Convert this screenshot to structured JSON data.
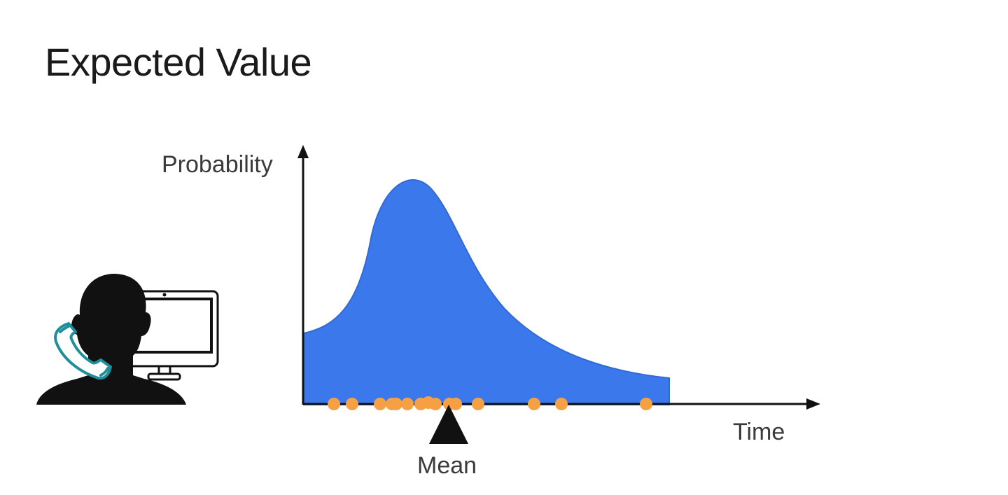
{
  "slide": {
    "title": "Expected Value"
  },
  "chart_data": {
    "type": "area",
    "ylabel": "Probability",
    "xlabel": "Time",
    "annotations": [
      "Mean"
    ],
    "grid": false,
    "distribution": "right-skewed density curve",
    "samples_count": 17
  },
  "icon": {
    "name": "person-on-phone-at-computer-icon"
  },
  "colors": {
    "curve_fill": "#3a78ec",
    "curve_edge": "#2f6ad6",
    "sample_dot": "#f5a044",
    "axis": "#111111",
    "mean_marker": "#111111",
    "phone_teal": "#1e8f9a"
  }
}
